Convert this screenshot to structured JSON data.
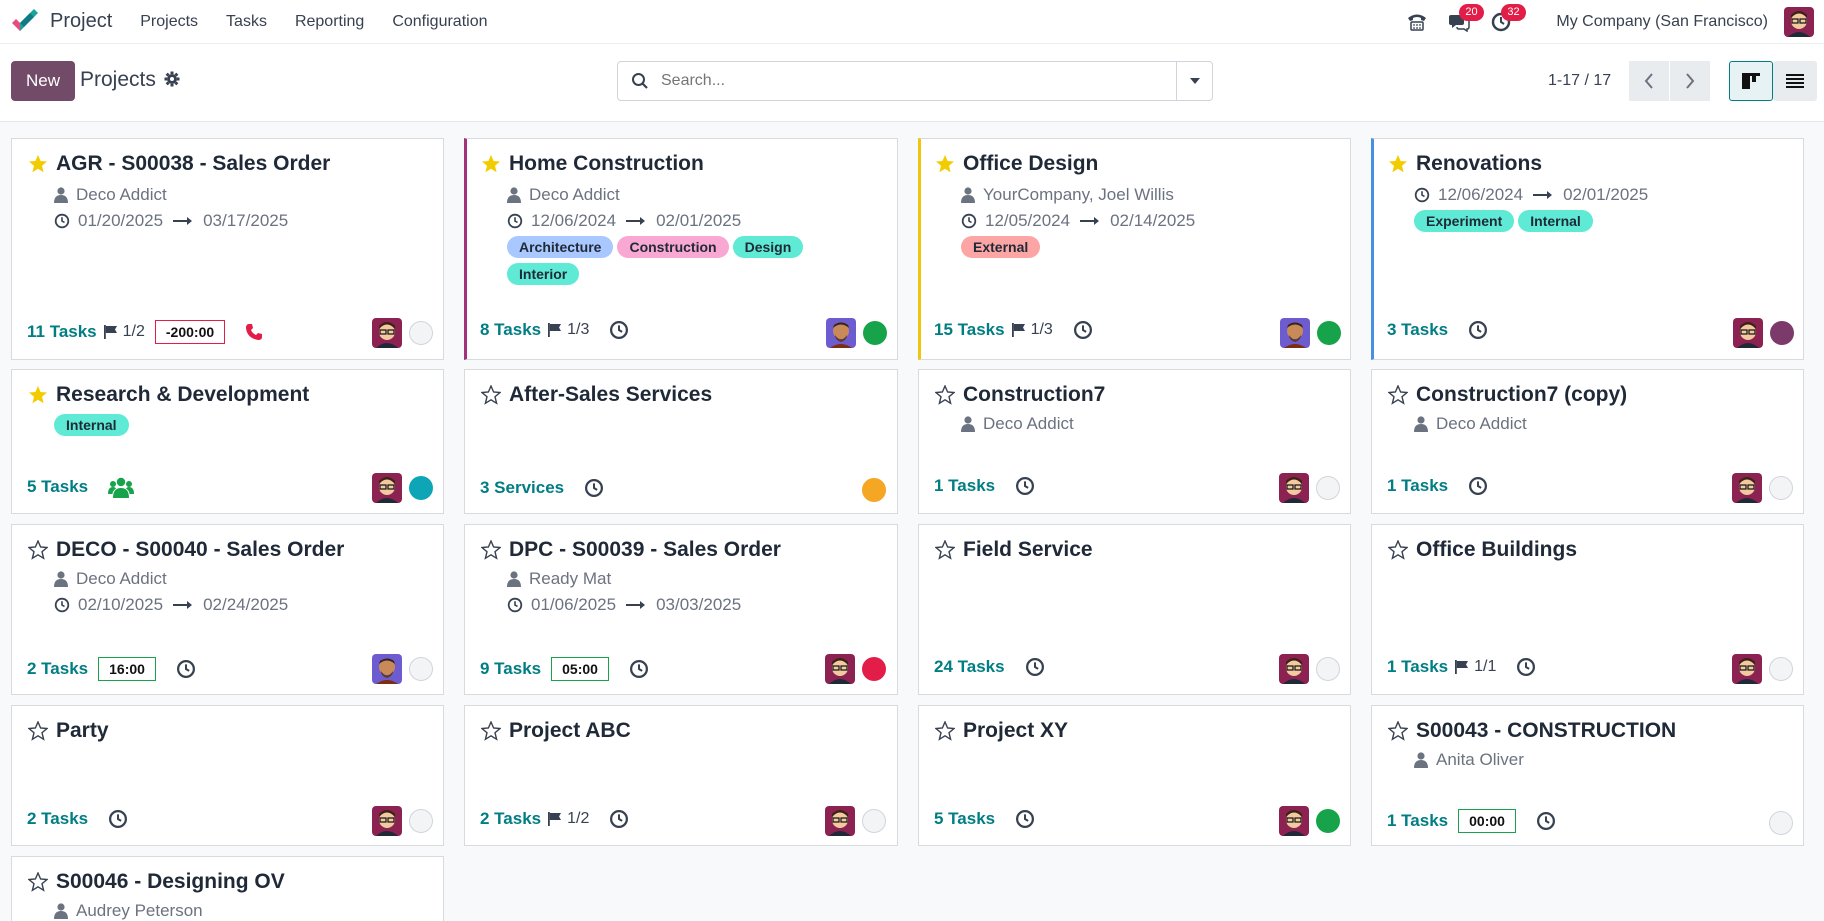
{
  "navbar": {
    "app_name": "Project",
    "menus": [
      "Projects",
      "Tasks",
      "Reporting",
      "Configuration"
    ],
    "messages_count": "20",
    "activities_count": "32",
    "company": "My Company (San Francisco)"
  },
  "control": {
    "new_label": "New",
    "title": "Projects",
    "search_placeholder": "Search...",
    "pager": "1-17 / 17"
  },
  "colors": {
    "brand": "#714b67",
    "link": "#017e84",
    "tag_blue": "#a8c8ff",
    "tag_pink": "#f9a8d4",
    "tag_teal": "#5eead4",
    "tag_red": "#fca5a5"
  },
  "projects": [
    {
      "name": "AGR - S00038 - Sales Order",
      "favorite": true,
      "customer": "Deco Addict",
      "dates": [
        "01/20/2025",
        "03/17/2025"
      ],
      "tasks": "11 Tasks",
      "milestones": "1/2",
      "hours": "-200:00",
      "icons": [
        "phone-icon"
      ],
      "status": "grey"
    },
    {
      "name": "Home Construction",
      "favorite": true,
      "customer": "Deco Addict",
      "dates": [
        "12/06/2024",
        "02/01/2025"
      ],
      "tags": [
        "Architecture",
        "Construction",
        "Design",
        "Interior"
      ],
      "tasks": "8 Tasks",
      "milestones": "1/3",
      "status": "green"
    },
    {
      "name": "Office Design",
      "favorite": true,
      "customer": "YourCompany, Joel Willis",
      "dates": [
        "12/05/2024",
        "02/14/2025"
      ],
      "tags": [
        "External"
      ],
      "tasks": "15 Tasks",
      "milestones": "1/3",
      "status": "green"
    },
    {
      "name": "Renovations",
      "favorite": true,
      "dates": [
        "12/06/2024",
        "02/01/2025"
      ],
      "tags": [
        "Experiment",
        "Internal"
      ],
      "tasks": "3 Tasks",
      "status": "purple"
    },
    {
      "name": "Research & Development",
      "favorite": true,
      "tags": [
        "Internal"
      ],
      "tasks": "5 Tasks",
      "icons": [
        "users-icon"
      ],
      "status": "teal"
    },
    {
      "name": "After-Sales Services",
      "favorite": false,
      "tasks": "3 Services",
      "status": "orange"
    },
    {
      "name": "Construction7",
      "favorite": false,
      "customer": "Deco Addict",
      "tasks": "1 Tasks",
      "status": "grey"
    },
    {
      "name": "Construction7 (copy)",
      "favorite": false,
      "customer": "Deco Addict",
      "tasks": "1 Tasks",
      "status": "grey"
    },
    {
      "name": "DECO - S00040 - Sales Order",
      "favorite": false,
      "customer": "Deco Addict",
      "dates": [
        "02/10/2025",
        "02/24/2025"
      ],
      "tasks": "2 Tasks",
      "hours": "16:00",
      "status": "grey"
    },
    {
      "name": "DPC - S00039 - Sales Order",
      "favorite": false,
      "customer": "Ready Mat",
      "dates": [
        "01/06/2025",
        "03/03/2025"
      ],
      "tasks": "9 Tasks",
      "hours": "05:00",
      "status": "red"
    },
    {
      "name": "Field Service",
      "favorite": false,
      "tasks": "24 Tasks",
      "status": "grey"
    },
    {
      "name": "Office Buildings",
      "favorite": false,
      "tasks": "1 Tasks",
      "milestones": "1/1",
      "status": "grey"
    },
    {
      "name": "Party",
      "favorite": false,
      "tasks": "2 Tasks",
      "status": "grey"
    },
    {
      "name": "Project ABC",
      "favorite": false,
      "tasks": "2 Tasks",
      "milestones": "1/2",
      "status": "grey"
    },
    {
      "name": "Project XY",
      "favorite": false,
      "tasks": "5 Tasks",
      "status": "green"
    },
    {
      "name": "S00043 - CONSTRUCTION",
      "favorite": false,
      "customer": "Anita Oliver",
      "tasks": "1 Tasks",
      "hours": "00:00",
      "status": "grey"
    },
    {
      "name": "S00046 - Designing OV",
      "favorite": false,
      "customer": "Audrey Peterson"
    }
  ]
}
